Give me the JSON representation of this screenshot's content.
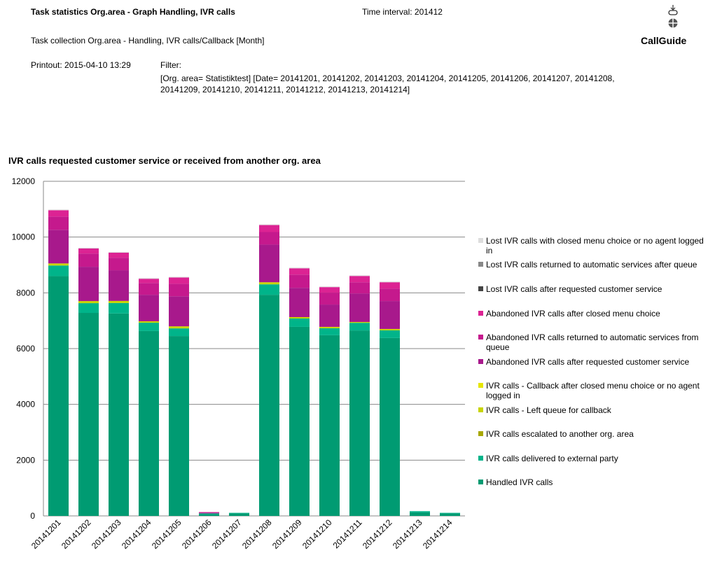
{
  "header": {
    "report_title": "Task statistics Org.area - Graph Handling, IVR calls",
    "time_interval": "Time interval: 201412",
    "collection": "Task collection Org.area - Handling, IVR calls/Callback [Month]",
    "printout": "Printout: 2015-04-10 13:29",
    "filter_label": "Filter:",
    "filter_text": "[Org. area= Statistiktest] [Date= 20141201, 20141202, 20141203, 20141204, 20141205, 20141206, 20141207, 20141208, 20141209, 20141210, 20141211, 20141212, 20141213, 20141214]",
    "logo_text": "CallGuide"
  },
  "chart_data": {
    "type": "bar",
    "stacked": true,
    "title": "IVR calls requested customer service or received from another org. area",
    "xlabel": "",
    "ylabel": "",
    "ylim": [
      0,
      12000
    ],
    "yticks": [
      0,
      2000,
      4000,
      6000,
      8000,
      10000,
      12000
    ],
    "grid": true,
    "legend_placement": "right",
    "categories": [
      "20141201",
      "20141202",
      "20141203",
      "20141204",
      "20141205",
      "20141206",
      "20141207",
      "20141208",
      "20141209",
      "20141210",
      "20141211",
      "20141212",
      "20141213",
      "20141214"
    ],
    "series": [
      {
        "name": "Handled IVR calls",
        "color": "#009B72",
        "values": [
          8600,
          7280,
          7260,
          6630,
          6450,
          70,
          90,
          7930,
          6780,
          6480,
          6650,
          6380,
          130,
          90
        ]
      },
      {
        "name": "IVR calls delivered to external party",
        "color": "#00B48A",
        "values": [
          380,
          350,
          375,
          300,
          275,
          20,
          20,
          375,
          300,
          250,
          275,
          275,
          40,
          20
        ]
      },
      {
        "name": "IVR calls escalated to another org. area",
        "color": "#A8A800",
        "values": [
          0,
          0,
          0,
          0,
          0,
          0,
          0,
          0,
          0,
          0,
          0,
          0,
          0,
          0
        ]
      },
      {
        "name": "IVR calls - Left queue for callback",
        "color": "#C8D400",
        "values": [
          75,
          75,
          75,
          50,
          75,
          0,
          0,
          75,
          50,
          50,
          30,
          50,
          0,
          0
        ]
      },
      {
        "name": "IVR calls - Callback after closed menu choice or no agent logged in",
        "color": "#E6E600",
        "values": [
          0,
          0,
          0,
          0,
          0,
          0,
          0,
          0,
          0,
          0,
          0,
          0,
          0,
          0
        ]
      },
      {
        "name": "Abandoned IVR calls after requested customer service",
        "color": "#A8198C",
        "values": [
          1205,
          1230,
          1100,
          950,
          1075,
          20,
          0,
          1350,
          1050,
          800,
          1025,
          1000,
          0,
          0
        ]
      },
      {
        "name": "Abandoned IVR calls returned to automatic services from queue",
        "color": "#C5198D",
        "values": [
          477,
          475,
          450,
          425,
          450,
          20,
          0,
          450,
          475,
          425,
          400,
          450,
          0,
          0
        ]
      },
      {
        "name": "Abandoned IVR calls after closed menu choice",
        "color": "#DC2393",
        "values": [
          226,
          180,
          180,
          150,
          225,
          10,
          0,
          250,
          225,
          200,
          225,
          225,
          0,
          0
        ]
      },
      {
        "name": "Lost IVR calls after requested customer service",
        "color": "#444444",
        "values": [
          0,
          0,
          0,
          0,
          0,
          0,
          0,
          0,
          0,
          0,
          0,
          0,
          0,
          0
        ]
      },
      {
        "name": "Lost IVR calls returned to automatic services after queue",
        "color": "#888888",
        "values": [
          0,
          0,
          0,
          0,
          0,
          0,
          0,
          0,
          0,
          0,
          0,
          0,
          0,
          0
        ]
      },
      {
        "name": "Lost IVR calls with closed menu choice or no agent logged in",
        "color": "#DDDDDD",
        "values": [
          25,
          25,
          25,
          25,
          25,
          0,
          0,
          25,
          25,
          25,
          25,
          25,
          0,
          0
        ]
      }
    ]
  }
}
